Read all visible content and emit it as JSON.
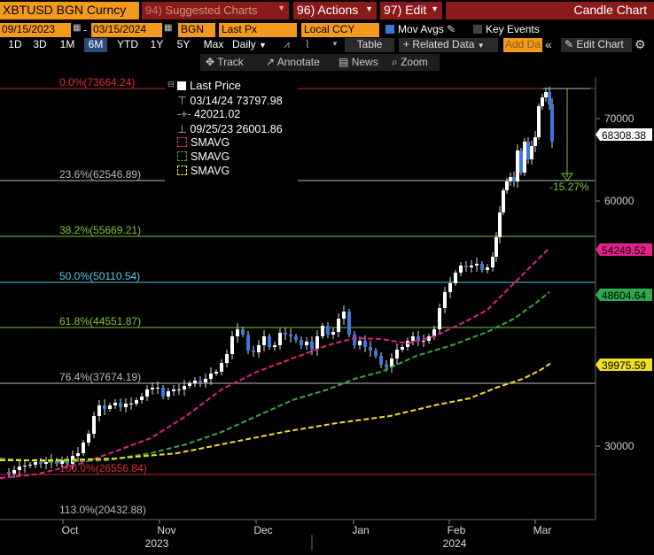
{
  "toolbar": {
    "ticker": "XBTUSD BGN Curncy",
    "suggested": "Suggested Charts",
    "suggested_num": "94)",
    "actions": "Actions",
    "actions_num": "96)",
    "edit": "Edit",
    "edit_num": "97)",
    "title": "Candle Chart"
  },
  "params": {
    "start_date": "09/15/2023",
    "end_date": "03/15/2024",
    "source": "BGN",
    "field": "Last Px",
    "currency": "Local CCY",
    "mov_avgs": "Mov Avgs",
    "key_events": "Key Events"
  },
  "periods": [
    "1D",
    "3D",
    "1M",
    "6M",
    "YTD",
    "1Y",
    "5Y",
    "Max"
  ],
  "active_period": "6M",
  "toolbar3": {
    "frequency": "Daily",
    "table": "Table",
    "related_data": "Related Data",
    "add_data": "Add Da",
    "edit_chart": "Edit Chart"
  },
  "tools": {
    "track": "Track",
    "annotate": "Annotate",
    "news": "News",
    "zoom": "Zoom"
  },
  "legend": {
    "last_price": "Last Price",
    "high": "03/14/24 73797.98",
    "avg": "42021.02",
    "low": "09/25/23 26001.86",
    "sma1": "SMAVG",
    "sma2": "SMAVG",
    "sma3": "SMAVG"
  },
  "fib_labels": {
    "f0": "0.0%(73664.24)",
    "f236": "23.6%(62546.89)",
    "f382": "38.2%(55669.21)",
    "f50": "50.0%(50110.54)",
    "f618": "61.8%(44551.87)",
    "f764": "76.4%(37674.19)",
    "f100": "100.0%(26556.84)",
    "f113": "113.0%(20432.88)"
  },
  "change_label": "-15.27%",
  "price_tags": {
    "last": "68308.38",
    "sma1": "54249.52",
    "sma2": "48604.64",
    "sma3": "39975.59"
  },
  "y_ticks": [
    "70000",
    "60000",
    "30000"
  ],
  "x_months": [
    "Oct",
    "Nov",
    "Dec",
    "Jan",
    "Feb",
    "Mar"
  ],
  "x_years": [
    "2023",
    "2024"
  ],
  "colors": {
    "orange": "#f39a1e",
    "red": "#e03030",
    "green": "#7ec832",
    "cyan": "#5ec8e6",
    "pink": "#e0208c",
    "sma_green": "#3aa83a",
    "sma_yellow": "#f0e020",
    "tag_pink": "#e8208c",
    "tag_green": "#2ea84a",
    "tag_yellow": "#f0e020"
  }
}
